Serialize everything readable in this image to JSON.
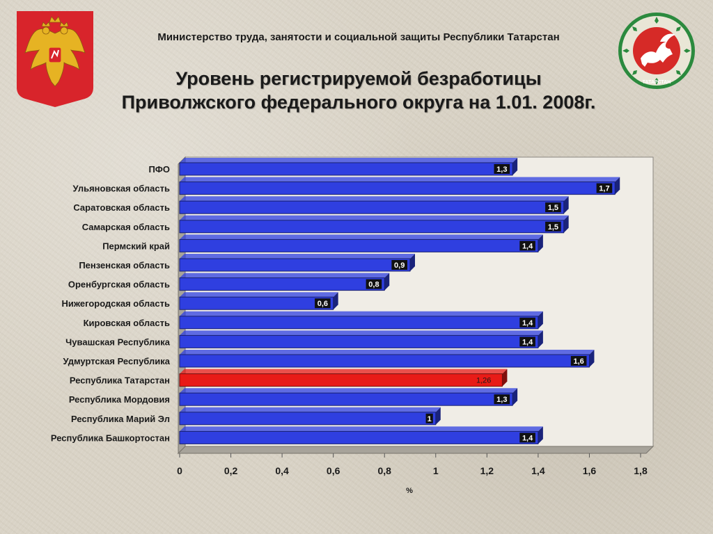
{
  "header": {
    "ministry": "Министерство  труда,  занятости и социальной защиты Республики Татарстан",
    "title_line1": "Уровень регистрируемой безработицы",
    "title_line2": "Приволжского федерального округа на 1.01. 2008г."
  },
  "logos": {
    "left": "russian-coat-of-arms",
    "right": "tatarstan-emblem",
    "right_text": "ТАТАРСТАН"
  },
  "colors": {
    "bar": "#2f3fe0",
    "bar_highlight": "#e81b17",
    "label_bg": "#111111"
  },
  "chart_data": {
    "type": "bar",
    "orientation": "horizontal",
    "categories": [
      "ПФО",
      "Ульяновская область",
      "Саратовская область",
      "Самарская область",
      "Пермский край",
      "Пензенская область",
      "Оренбургская область",
      "Нижегородская область",
      "Кировская область",
      "Чувашская Республика",
      "Удмуртская Республика",
      "Республика Татарстан",
      "Республика Мордовия",
      "Республика Марий Эл",
      "Республика Башкортостан"
    ],
    "values": [
      1.3,
      1.7,
      1.5,
      1.5,
      1.4,
      0.9,
      0.8,
      0.6,
      1.4,
      1.4,
      1.6,
      1.26,
      1.3,
      1.0,
      1.4
    ],
    "value_labels": [
      "1,3",
      "1,7",
      "1,5",
      "1,5",
      "1,4",
      "0,9",
      "0,8",
      "0,6",
      "1,4",
      "1,4",
      "1,6",
      "1,26",
      "1,3",
      "1",
      "1,4"
    ],
    "highlight": "Республика Татарстан",
    "xlim": [
      0,
      1.8
    ],
    "xticks": [
      0,
      0.2,
      0.4,
      0.6,
      0.8,
      1,
      1.2,
      1.4,
      1.6,
      1.8
    ],
    "xtick_labels": [
      "0",
      "0,2",
      "0,4",
      "0,6",
      "0,8",
      "1",
      "1,2",
      "1,4",
      "1,6",
      "1,8"
    ],
    "xlabel": "%",
    "ylabel": "",
    "grid": false,
    "style": "3d"
  }
}
